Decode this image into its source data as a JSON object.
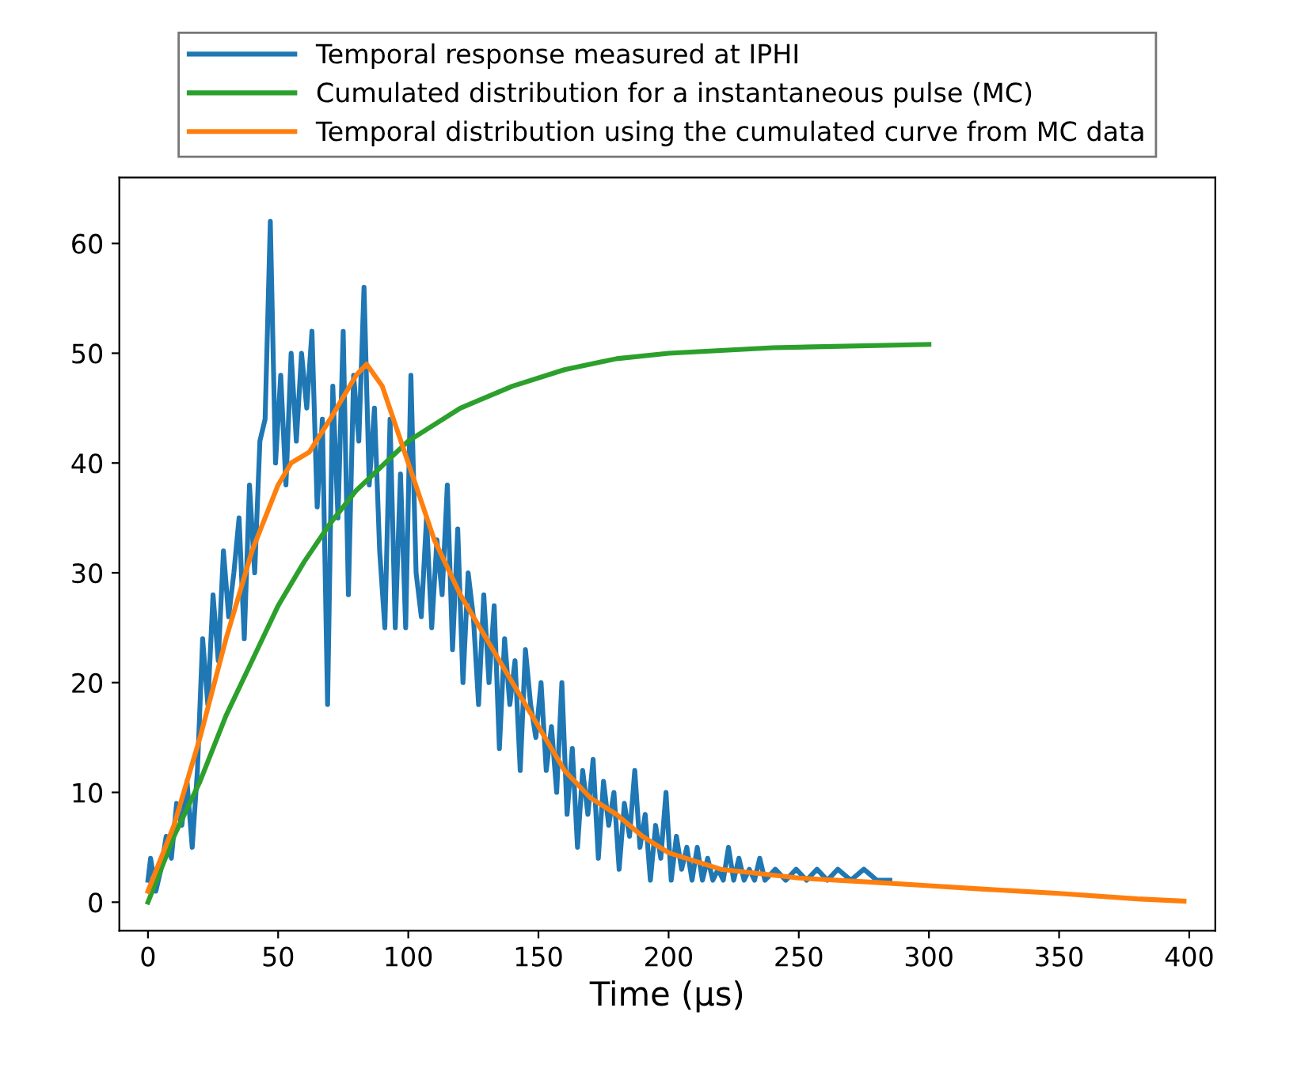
{
  "chart_data": {
    "type": "line",
    "xlabel": "Time (µs)",
    "xlim": [
      -11,
      410
    ],
    "ylim": [
      -2.6,
      66
    ],
    "xticks": [
      0,
      50,
      100,
      150,
      200,
      250,
      300,
      350,
      400
    ],
    "yticks": [
      0,
      10,
      20,
      30,
      40,
      50,
      60
    ],
    "grid": false,
    "legend": "top",
    "series": [
      {
        "name": "Temporal response measured at IPHI",
        "color": "#1f77b4",
        "x": [
          0,
          1,
          3,
          5,
          7,
          9,
          11,
          13,
          15,
          17,
          19,
          21,
          23,
          25,
          27,
          29,
          31,
          33,
          35,
          37,
          39,
          41,
          43,
          45,
          47,
          49,
          51,
          53,
          55,
          57,
          59,
          61,
          63,
          65,
          67,
          69,
          71,
          73,
          75,
          77,
          79,
          81,
          83,
          85,
          87,
          89,
          91,
          93,
          95,
          97,
          99,
          101,
          103,
          105,
          107,
          109,
          111,
          113,
          115,
          117,
          119,
          121,
          123,
          125,
          127,
          129,
          131,
          133,
          135,
          137,
          139,
          141,
          143,
          145,
          147,
          149,
          151,
          153,
          155,
          157,
          159,
          161,
          163,
          165,
          167,
          169,
          171,
          173,
          175,
          177,
          179,
          181,
          183,
          185,
          187,
          189,
          191,
          193,
          195,
          197,
          199,
          201,
          203,
          205,
          207,
          209,
          211,
          213,
          215,
          217,
          219,
          221,
          223,
          225,
          227,
          229,
          231,
          233,
          235,
          237,
          241,
          245,
          249,
          253,
          257,
          261,
          265,
          270,
          275,
          280,
          285
        ],
        "values": [
          2,
          4,
          1,
          3,
          6,
          4,
          9,
          7,
          11,
          5,
          12,
          24,
          18,
          28,
          22,
          32,
          26,
          30,
          35,
          24,
          38,
          30,
          42,
          44,
          62,
          40,
          48,
          38,
          50,
          42,
          50,
          45,
          52,
          36,
          44,
          18,
          47,
          35,
          52,
          28,
          48,
          42,
          56,
          38,
          45,
          32,
          25,
          44,
          25,
          39,
          25,
          48,
          30,
          26,
          35,
          25,
          33,
          28,
          38,
          23,
          34,
          20,
          30,
          26,
          18,
          28,
          20,
          27,
          14,
          24,
          18,
          22,
          12,
          23,
          18,
          15,
          20,
          12,
          16,
          10,
          20,
          8,
          14,
          5,
          12,
          8,
          13,
          4,
          11,
          7,
          10,
          3,
          9,
          6,
          12,
          5,
          8,
          2,
          7,
          4,
          10,
          2,
          6,
          3,
          5,
          2,
          5,
          2,
          4,
          2,
          3,
          2,
          5,
          2,
          4,
          2,
          3,
          2,
          4,
          2,
          3,
          2,
          3,
          2,
          3,
          2,
          3,
          2,
          3,
          2,
          2
        ]
      },
      {
        "name": "Cumulated distribution for a instantaneous pulse (MC)",
        "color": "#2ca02c",
        "x": [
          0,
          10,
          20,
          30,
          40,
          50,
          60,
          70,
          80,
          100,
          120,
          140,
          160,
          180,
          200,
          240,
          300
        ],
        "values": [
          0,
          6,
          11,
          17,
          22,
          27,
          31,
          34.5,
          37.5,
          42,
          45,
          47,
          48.5,
          49.5,
          50,
          50.5,
          50.8
        ]
      },
      {
        "name": "Temporal distribution using the cumulated curve from MC data",
        "color": "#ff7f0e",
        "x": [
          0,
          10,
          20,
          30,
          40,
          50,
          55,
          62,
          70,
          80,
          84,
          90,
          100,
          110,
          120,
          130,
          140,
          150,
          160,
          170,
          180,
          190,
          200,
          220,
          250,
          280,
          300,
          320,
          350,
          380,
          398
        ],
        "values": [
          1,
          7,
          15,
          24,
          32,
          38,
          40,
          41,
          44,
          48,
          49,
          47,
          40,
          33,
          28,
          24,
          20,
          16,
          12,
          9.5,
          8,
          6,
          4.5,
          3,
          2.2,
          1.8,
          1.5,
          1.2,
          0.8,
          0.3,
          0.1
        ]
      }
    ]
  }
}
